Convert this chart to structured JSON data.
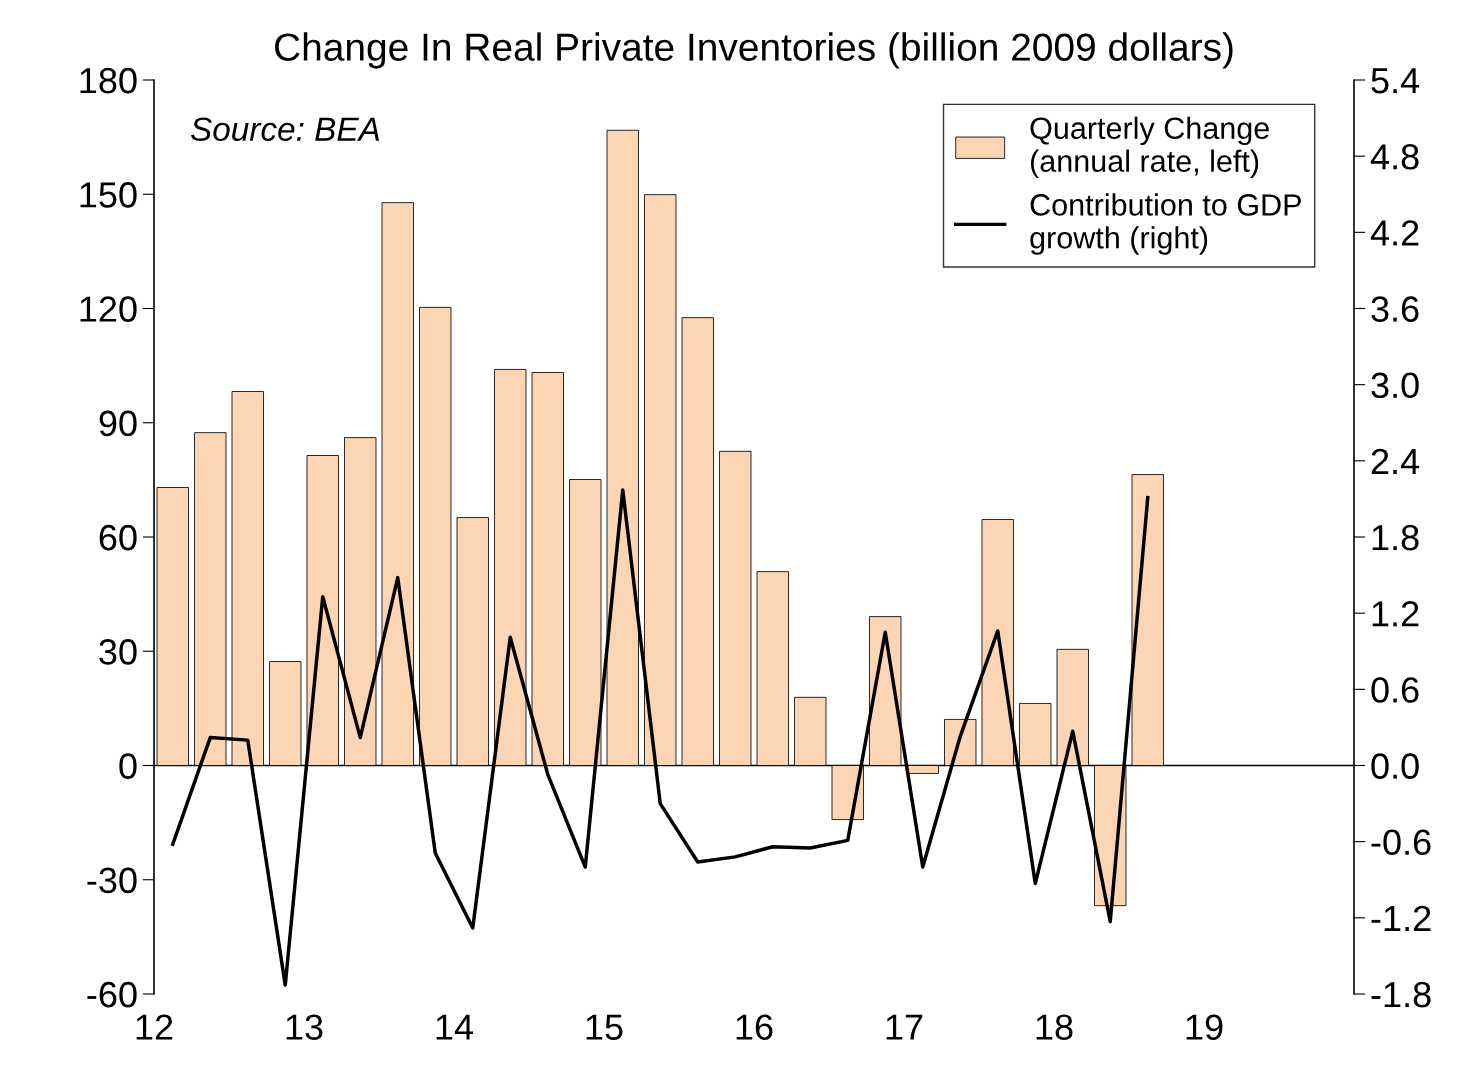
{
  "chart_data": {
    "type": "bar",
    "title": "Change In Real Private Inventories (billion 2009 dollars)",
    "annotations": [
      "Source: BEA"
    ],
    "x": [
      12.125,
      12.375,
      12.625,
      12.875,
      13.125,
      13.375,
      13.625,
      13.875,
      14.125,
      14.375,
      14.625,
      14.875,
      15.125,
      15.375,
      15.625,
      15.875,
      16.125,
      16.375,
      16.625,
      16.875,
      17.125,
      17.375,
      17.625,
      17.875,
      18.125,
      18.375,
      18.625
    ],
    "series": [
      {
        "name": "Quarterly Change\n(annual rate, left)",
        "color": "#fcd5b4",
        "values": [
          73.0,
          87.4,
          98.2,
          27.3,
          81.4,
          86.1,
          147.8,
          120.3,
          65.1,
          104.0,
          103.2,
          75.1,
          166.8,
          149.9,
          117.6,
          82.5,
          50.9,
          17.9,
          -14.2,
          39.1,
          -2.1,
          12.1,
          64.6,
          16.3,
          30.5,
          -36.8,
          76.4
        ]
      },
      {
        "name": "Contribution to GDP\ngrowth (right)",
        "type": "line",
        "axis": "y2",
        "color": "#000000",
        "values": [
          -0.62,
          0.22,
          0.2,
          -1.73,
          1.33,
          0.22,
          1.48,
          -0.69,
          -1.28,
          1.01,
          -0.07,
          -0.8,
          2.17,
          -0.3,
          -0.76,
          -0.72,
          -0.64,
          -0.65,
          -0.59,
          1.05,
          -0.8,
          0.23,
          1.06,
          -0.93,
          0.27,
          -1.23,
          2.11
        ]
      }
    ],
    "xlim": [
      12,
      20
    ],
    "xticks": [
      12,
      13,
      14,
      15,
      16,
      17,
      18,
      19
    ],
    "ylim": [
      -60,
      180
    ],
    "yticks": [
      -60,
      -30,
      0,
      30,
      60,
      90,
      120,
      150,
      180
    ],
    "y2lim": [
      -1.8,
      5.4
    ],
    "y2ticks": [
      -1.8,
      -1.2,
      -0.6,
      {
        "value": 0,
        "label": "0.0"
      },
      0.6,
      1.2,
      1.8,
      2.4,
      {
        "value": 3,
        "label": "3.0"
      },
      3.6,
      4.2,
      4.8,
      5.4
    ],
    "ref_lines": [
      {
        "axis": "y",
        "value": 0,
        "color": "#000000"
      }
    ],
    "legend": "top right"
  }
}
